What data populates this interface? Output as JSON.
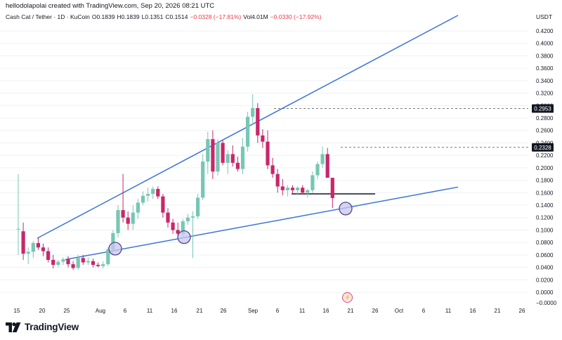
{
  "header": {
    "credit": "hellodolapolai created with TradingView.com, Sep 20, 2026 08:21 UTC",
    "symbol": "Cash Cat / Tether · 1D · KuCoin",
    "open": "O0.1839",
    "high": "H0.1839",
    "low": "L0.1351",
    "close": "C0.1514",
    "change": "−0.0328 (−17.81%)",
    "volume": "Vol4.01M",
    "vol_change": "−0.0330 (−17.92%)",
    "currency": "USDT"
  },
  "brand": {
    "name": "TradingView",
    "logo_icon": "tradingview-logo-icon"
  },
  "colors": {
    "up": "#76c7b4",
    "down": "#c8276a",
    "trendline": "#3b74d6",
    "circle_fill": "#c9c6ee",
    "circle_stroke": "#4f4a8a",
    "grid": "#eef0f3"
  },
  "chart_data": {
    "type": "candlestick",
    "title": "Cash Cat / Tether · 1D · KuCoin",
    "y_axis_position": "right",
    "y_ticks": [
      "0.4200",
      "0.4000",
      "0.3800",
      "0.3600",
      "0.3400",
      "0.3200",
      "0.3000",
      "0.2800",
      "0.2600",
      "0.2400",
      "0.2200",
      "0.2000",
      "0.1800",
      "0.1600",
      "0.1400",
      "0.1200",
      "0.1000",
      "0.0800",
      "0.0600",
      "0.0400",
      "0.0200",
      "0.0000",
      "−0.0000"
    ],
    "ylim": [
      0.0,
      0.42
    ],
    "x_ticks": [
      "15",
      "20",
      "25",
      "Aug",
      "6",
      "11",
      "16",
      "21",
      "26",
      "Sep",
      "6",
      "11",
      "16",
      "21",
      "26",
      "Oct",
      "6",
      "11",
      "16",
      "21",
      "26"
    ],
    "price_labels": [
      {
        "label": "0.2953",
        "value": 0.2953
      },
      {
        "label": "0.2328",
        "value": 0.2328
      }
    ],
    "candles": [
      {
        "o": 0.102,
        "h": 0.19,
        "l": 0.06,
        "c": 0.102
      },
      {
        "o": 0.098,
        "h": 0.112,
        "l": 0.052,
        "c": 0.062
      },
      {
        "o": 0.062,
        "h": 0.072,
        "l": 0.045,
        "c": 0.065
      },
      {
        "o": 0.065,
        "h": 0.082,
        "l": 0.055,
        "c": 0.079
      },
      {
        "o": 0.079,
        "h": 0.088,
        "l": 0.068,
        "c": 0.072
      },
      {
        "o": 0.072,
        "h": 0.078,
        "l": 0.058,
        "c": 0.066
      },
      {
        "o": 0.066,
        "h": 0.072,
        "l": 0.048,
        "c": 0.052
      },
      {
        "o": 0.052,
        "h": 0.06,
        "l": 0.038,
        "c": 0.044
      },
      {
        "o": 0.044,
        "h": 0.052,
        "l": 0.04,
        "c": 0.049
      },
      {
        "o": 0.049,
        "h": 0.056,
        "l": 0.044,
        "c": 0.053
      },
      {
        "o": 0.053,
        "h": 0.058,
        "l": 0.04,
        "c": 0.045
      },
      {
        "o": 0.045,
        "h": 0.05,
        "l": 0.036,
        "c": 0.039
      },
      {
        "o": 0.039,
        "h": 0.06,
        "l": 0.036,
        "c": 0.055
      },
      {
        "o": 0.055,
        "h": 0.06,
        "l": 0.044,
        "c": 0.048
      },
      {
        "o": 0.048,
        "h": 0.056,
        "l": 0.044,
        "c": 0.05
      },
      {
        "o": 0.05,
        "h": 0.054,
        "l": 0.04,
        "c": 0.044
      },
      {
        "o": 0.044,
        "h": 0.048,
        "l": 0.04,
        "c": 0.042
      },
      {
        "o": 0.042,
        "h": 0.05,
        "l": 0.038,
        "c": 0.045
      },
      {
        "o": 0.045,
        "h": 0.072,
        "l": 0.042,
        "c": 0.069
      },
      {
        "o": 0.069,
        "h": 0.1,
        "l": 0.06,
        "c": 0.095
      },
      {
        "o": 0.095,
        "h": 0.14,
        "l": 0.088,
        "c": 0.132
      },
      {
        "o": 0.132,
        "h": 0.19,
        "l": 0.112,
        "c": 0.12
      },
      {
        "o": 0.12,
        "h": 0.13,
        "l": 0.1,
        "c": 0.11
      },
      {
        "o": 0.11,
        "h": 0.14,
        "l": 0.1,
        "c": 0.128
      },
      {
        "o": 0.128,
        "h": 0.15,
        "l": 0.118,
        "c": 0.144
      },
      {
        "o": 0.144,
        "h": 0.162,
        "l": 0.14,
        "c": 0.155
      },
      {
        "o": 0.155,
        "h": 0.168,
        "l": 0.146,
        "c": 0.158
      },
      {
        "o": 0.158,
        "h": 0.17,
        "l": 0.15,
        "c": 0.166
      },
      {
        "o": 0.166,
        "h": 0.17,
        "l": 0.15,
        "c": 0.154
      },
      {
        "o": 0.154,
        "h": 0.158,
        "l": 0.12,
        "c": 0.128
      },
      {
        "o": 0.128,
        "h": 0.135,
        "l": 0.104,
        "c": 0.112
      },
      {
        "o": 0.112,
        "h": 0.118,
        "l": 0.094,
        "c": 0.1
      },
      {
        "o": 0.1,
        "h": 0.112,
        "l": 0.09,
        "c": 0.094
      },
      {
        "o": 0.094,
        "h": 0.118,
        "l": 0.09,
        "c": 0.114
      },
      {
        "o": 0.114,
        "h": 0.126,
        "l": 0.108,
        "c": 0.12
      },
      {
        "o": 0.12,
        "h": 0.13,
        "l": 0.055,
        "c": 0.122
      },
      {
        "o": 0.122,
        "h": 0.158,
        "l": 0.118,
        "c": 0.152
      },
      {
        "o": 0.152,
        "h": 0.222,
        "l": 0.148,
        "c": 0.21
      },
      {
        "o": 0.21,
        "h": 0.258,
        "l": 0.19,
        "c": 0.246
      },
      {
        "o": 0.246,
        "h": 0.26,
        "l": 0.182,
        "c": 0.194
      },
      {
        "o": 0.194,
        "h": 0.246,
        "l": 0.188,
        "c": 0.24
      },
      {
        "o": 0.24,
        "h": 0.244,
        "l": 0.204,
        "c": 0.208
      },
      {
        "o": 0.208,
        "h": 0.228,
        "l": 0.19,
        "c": 0.222
      },
      {
        "o": 0.222,
        "h": 0.236,
        "l": 0.202,
        "c": 0.208
      },
      {
        "o": 0.208,
        "h": 0.218,
        "l": 0.194,
        "c": 0.198
      },
      {
        "o": 0.198,
        "h": 0.248,
        "l": 0.19,
        "c": 0.234
      },
      {
        "o": 0.234,
        "h": 0.29,
        "l": 0.226,
        "c": 0.282
      },
      {
        "o": 0.282,
        "h": 0.318,
        "l": 0.27,
        "c": 0.296
      },
      {
        "o": 0.296,
        "h": 0.304,
        "l": 0.24,
        "c": 0.252
      },
      {
        "o": 0.252,
        "h": 0.262,
        "l": 0.232,
        "c": 0.242
      },
      {
        "o": 0.242,
        "h": 0.26,
        "l": 0.198,
        "c": 0.204
      },
      {
        "o": 0.204,
        "h": 0.216,
        "l": 0.184,
        "c": 0.19
      },
      {
        "o": 0.19,
        "h": 0.198,
        "l": 0.16,
        "c": 0.17
      },
      {
        "o": 0.17,
        "h": 0.182,
        "l": 0.156,
        "c": 0.164
      },
      {
        "o": 0.164,
        "h": 0.172,
        "l": 0.154,
        "c": 0.168
      },
      {
        "o": 0.168,
        "h": 0.172,
        "l": 0.158,
        "c": 0.164
      },
      {
        "o": 0.164,
        "h": 0.17,
        "l": 0.156,
        "c": 0.168
      },
      {
        "o": 0.168,
        "h": 0.172,
        "l": 0.158,
        "c": 0.16
      },
      {
        "o": 0.16,
        "h": 0.166,
        "l": 0.152,
        "c": 0.164
      },
      {
        "o": 0.164,
        "h": 0.194,
        "l": 0.16,
        "c": 0.188
      },
      {
        "o": 0.188,
        "h": 0.21,
        "l": 0.182,
        "c": 0.206
      },
      {
        "o": 0.206,
        "h": 0.234,
        "l": 0.2,
        "c": 0.222
      },
      {
        "o": 0.222,
        "h": 0.232,
        "l": 0.184,
        "c": 0.184
      },
      {
        "o": 0.1839,
        "h": 0.1839,
        "l": 0.1351,
        "c": 0.1514
      }
    ]
  }
}
